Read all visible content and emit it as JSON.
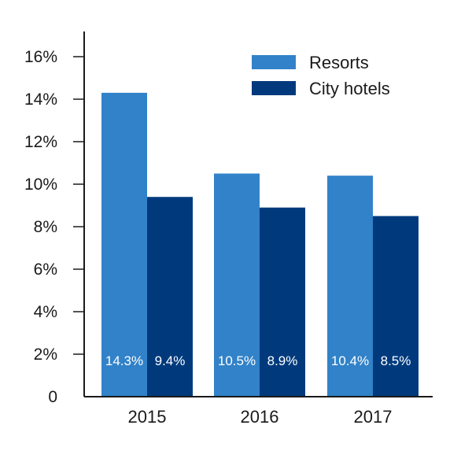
{
  "chart_data": {
    "type": "bar",
    "categories": [
      "2015",
      "2016",
      "2017"
    ],
    "series": [
      {
        "name": "Resorts",
        "values": [
          14.3,
          10.5,
          10.4
        ],
        "labels": [
          "14.3%",
          "10.5%",
          "10.4%"
        ],
        "color": "#3182c8"
      },
      {
        "name": "City hotels",
        "values": [
          9.4,
          8.9,
          8.5
        ],
        "labels": [
          "9.4%",
          "8.9%",
          "8.5%"
        ],
        "color": "#003a7d"
      }
    ],
    "title": "",
    "xlabel": "",
    "ylabel": "",
    "ylim": [
      0,
      16
    ],
    "yticks": [
      0,
      2,
      4,
      6,
      8,
      10,
      12,
      14,
      16
    ],
    "ytick_labels": [
      "0",
      "2%",
      "4%",
      "6%",
      "8%",
      "10%",
      "12%",
      "14%",
      "16%"
    ],
    "grid": false,
    "legend_position": "top-right"
  }
}
